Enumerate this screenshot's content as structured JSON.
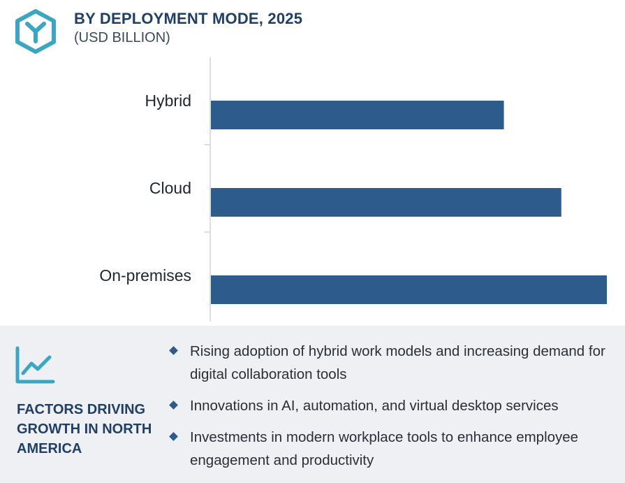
{
  "header": {
    "title": "BY DEPLOYMENT MODE, 2025",
    "subtitle": "(USD BILLION)",
    "logo_icon": "hexagon-y-logo-icon",
    "accent_color": "#3aa6c4"
  },
  "chart_data": {
    "type": "bar",
    "orientation": "horizontal",
    "title": "BY DEPLOYMENT MODE, 2025",
    "unit": "USD BILLION",
    "categories": [
      "Hybrid",
      "Cloud",
      "On-premises"
    ],
    "values": [
      74,
      88.5,
      100
    ],
    "xlim": [
      0,
      100
    ],
    "xlabel": "",
    "ylabel": "",
    "bar_color": "#2d5b8c",
    "grid": false,
    "legend": "none"
  },
  "factors": {
    "icon": "trend-line-chart-icon",
    "heading": "FACTORS DRIVING GROWTH IN NORTH AMERICA",
    "items": [
      "Rising adoption of hybrid work models and increasing demand for digital collaboration tools",
      "Innovations in AI, automation, and virtual desktop services",
      "Investments in modern workplace tools to enhance employee engagement and productivity"
    ]
  }
}
